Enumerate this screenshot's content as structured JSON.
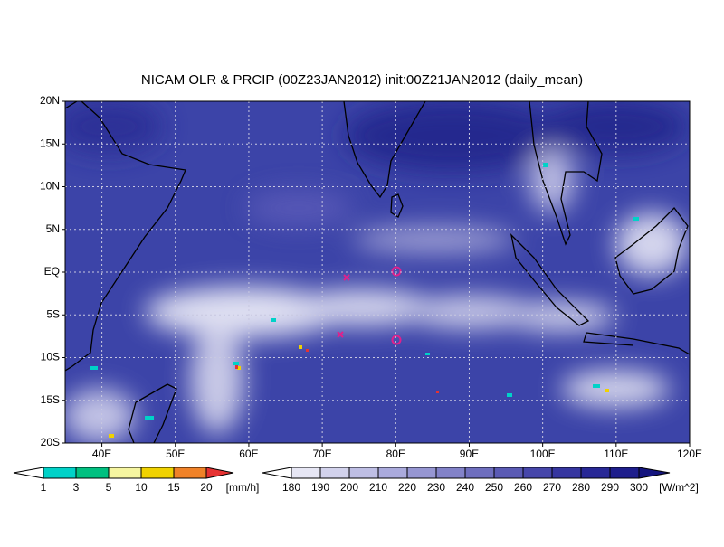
{
  "title": "NICAM OLR & PRCIP (00Z23JAN2012) init:00Z21JAN2012 (daily_mean)",
  "map": {
    "lon_range": [
      35,
      120
    ],
    "lat_range": [
      -20,
      20
    ],
    "lon_ticks": [
      {
        "value": 40,
        "label": "40E"
      },
      {
        "value": 50,
        "label": "50E"
      },
      {
        "value": 60,
        "label": "60E"
      },
      {
        "value": 70,
        "label": "70E"
      },
      {
        "value": 80,
        "label": "80E"
      },
      {
        "value": 90,
        "label": "90E"
      },
      {
        "value": 100,
        "label": "100E"
      },
      {
        "value": 110,
        "label": "110E"
      },
      {
        "value": 120,
        "label": "120E"
      }
    ],
    "lat_ticks": [
      {
        "value": 20,
        "label": "20N"
      },
      {
        "value": 15,
        "label": "15N"
      },
      {
        "value": 10,
        "label": "10N"
      },
      {
        "value": 5,
        "label": "5N"
      },
      {
        "value": 0,
        "label": "EQ"
      },
      {
        "value": -5,
        "label": "5S"
      },
      {
        "value": -10,
        "label": "10S"
      },
      {
        "value": -15,
        "label": "15S"
      },
      {
        "value": -20,
        "label": "20S"
      }
    ]
  },
  "precip_legend": {
    "levels": [
      1,
      3,
      5,
      10,
      15,
      20
    ],
    "unit": "[mm/h]",
    "colors": [
      "#ffffff",
      "#00d2c8",
      "#00c080",
      "#f5f5a0",
      "#f0d200",
      "#f08228",
      "#e63232"
    ]
  },
  "olr_legend": {
    "levels": [
      180,
      190,
      200,
      210,
      220,
      230,
      240,
      250,
      260,
      270,
      280,
      290,
      300
    ],
    "unit": "[W/m^2]",
    "colors": [
      "#ffffff",
      "#e6e6f4",
      "#d2d2ec",
      "#bebee4",
      "#aaaadc",
      "#9696d2",
      "#8282c8",
      "#6e6ebe",
      "#5a5ab4",
      "#4646aa",
      "#3636a0",
      "#282896",
      "#1e1e8c",
      "#14147e"
    ]
  }
}
